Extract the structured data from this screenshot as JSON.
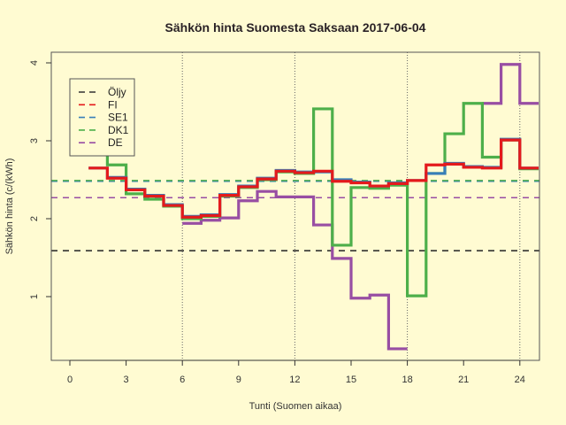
{
  "chart_data": {
    "type": "line",
    "step": true,
    "title": "Sähkön hinta Suomesta Saksaan 2017-06-04",
    "xlabel": "Tunti (Suomen aikaa)",
    "ylabel": "Sähkön hinta (c/(kWh)",
    "xlim": [
      -1,
      25
    ],
    "ylim": [
      0.2,
      4.1
    ],
    "xticks": [
      0,
      3,
      6,
      9,
      12,
      15,
      18,
      21,
      24
    ],
    "yticks": [
      1,
      2,
      3,
      4
    ],
    "vlines": [
      6,
      12,
      18,
      24
    ],
    "legend_position": "top-left",
    "x": [
      1,
      2,
      3,
      4,
      5,
      6,
      7,
      8,
      9,
      10,
      11,
      12,
      13,
      14,
      15,
      16,
      17,
      18,
      19,
      20,
      21,
      22,
      23,
      24
    ],
    "series": [
      {
        "name": "FI",
        "color": "#e41a1c",
        "values": [
          2.65,
          2.52,
          2.37,
          2.29,
          2.17,
          2.02,
          2.04,
          2.3,
          2.41,
          2.51,
          2.61,
          2.59,
          2.61,
          2.48,
          2.46,
          2.42,
          2.45,
          2.49,
          2.69,
          2.7,
          2.66,
          2.65,
          3.01,
          2.65
        ]
      },
      {
        "name": "SE1",
        "color": "#377eb8",
        "values": [
          2.65,
          2.53,
          2.38,
          2.3,
          2.18,
          2.03,
          2.05,
          2.31,
          2.42,
          2.52,
          2.62,
          2.6,
          2.6,
          2.5,
          2.47,
          2.42,
          2.46,
          2.49,
          2.58,
          2.71,
          2.67,
          2.66,
          3.02,
          2.65
        ]
      },
      {
        "name": "DK1",
        "color": "#4daf4a",
        "values": [
          3.0,
          2.69,
          2.32,
          2.25,
          2.16,
          2.0,
          2.03,
          2.29,
          2.4,
          2.5,
          2.6,
          2.58,
          3.41,
          1.66,
          2.4,
          2.39,
          2.43,
          1.01,
          2.58,
          3.09,
          3.48,
          2.79,
          3.01,
          2.64
        ]
      },
      {
        "name": "DE",
        "color": "#984ea3",
        "values": [
          null,
          null,
          null,
          null,
          null,
          1.94,
          1.98,
          2.01,
          2.23,
          2.35,
          2.28,
          2.28,
          1.92,
          1.49,
          0.98,
          1.02,
          0.33,
          null,
          null,
          null,
          null,
          3.48,
          3.98,
          3.48
        ]
      }
    ],
    "hlines": [
      {
        "name": "Öljy",
        "color": "#222222",
        "value": 1.59
      },
      {
        "name": "FI",
        "color": "#e41a1c",
        "value": 2.48
      },
      {
        "name": "SE1",
        "color": "#377eb8",
        "value": 2.48
      },
      {
        "name": "DK1",
        "color": "#4daf4a",
        "value": 2.49
      },
      {
        "name": "DE",
        "color": "#984ea3",
        "value": 2.27
      }
    ],
    "legend": [
      {
        "label": "Öljy",
        "color": "#333333"
      },
      {
        "label": "FI",
        "color": "#e41a1c"
      },
      {
        "label": "SE1",
        "color": "#377eb8"
      },
      {
        "label": "DK1",
        "color": "#4daf4a"
      },
      {
        "label": "DE",
        "color": "#984ea3"
      }
    ]
  }
}
